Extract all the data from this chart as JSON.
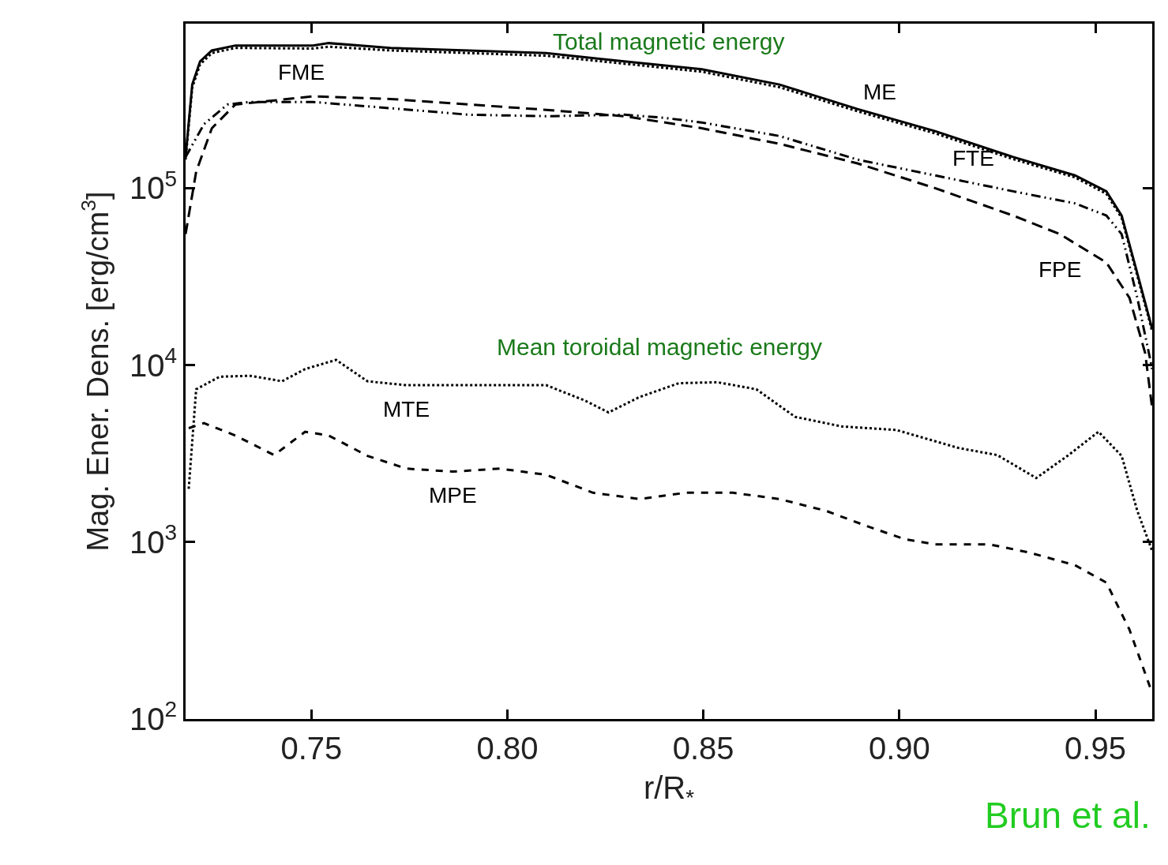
{
  "chart_data": {
    "type": "line",
    "xlabel": "r/R$_{*}$",
    "ylabel": "Mag. Ener. Dens. [erg/cm$^{3}$]",
    "log": "y",
    "legend": false,
    "marker": "none",
    "xlim": [
      0.7179,
      0.9645
    ],
    "xticks": [
      0.75,
      {
        "value": 0.8,
        "label": "0.80"
      },
      0.85,
      {
        "value": 0.9,
        "label": "0.90"
      },
      0.95
    ],
    "ylim": [
      100,
      850000
    ],
    "yticks": [
      {
        "value": 100,
        "label": "10$^{2}$"
      },
      {
        "value": 1000,
        "label": "10$^{3}$"
      },
      {
        "value": 10000,
        "label": "10$^{4}$"
      },
      {
        "value": 100000,
        "label": "10$^{5}$"
      }
    ],
    "series": [
      {
        "name": "ME",
        "color": "#000000",
        "line_style": "solid",
        "x": [
          0.7179,
          0.7196,
          0.7216,
          0.7246,
          0.7306,
          0.7504,
          0.7544,
          0.7702,
          0.7901,
          0.8099,
          0.8298,
          0.8496,
          0.8694,
          0.8893,
          0.9091,
          0.929,
          0.9448,
          0.9528,
          0.9567,
          0.9607,
          0.9645
        ],
        "values": [
          150000,
          385000,
          520000,
          600000,
          640000,
          640000,
          660000,
          620000,
          600000,
          580000,
          520000,
          470000,
          385000,
          280000,
          210000,
          150000,
          118000,
          96000,
          70000,
          33000,
          16000
        ]
      },
      {
        "name": "FME",
        "color": "#000000",
        "line_style": "dotted",
        "x": [
          0.7179,
          0.7196,
          0.7216,
          0.7246,
          0.7306,
          0.7504,
          0.7544,
          0.7702,
          0.7901,
          0.8099,
          0.8298,
          0.8496,
          0.8694,
          0.8893,
          0.9091,
          0.929,
          0.9448,
          0.9528,
          0.9567,
          0.9607,
          0.9645
        ],
        "values": [
          145000,
          370000,
          500000,
          580000,
          620000,
          615000,
          630000,
          600000,
          580000,
          560000,
          505000,
          455000,
          372000,
          272000,
          204000,
          146000,
          115000,
          93000,
          68000,
          32000,
          15500
        ]
      },
      {
        "name": "FTE",
        "color": "#000000",
        "line_style": "dashdotdot",
        "x": [
          0.7179,
          0.7226,
          0.7286,
          0.7345,
          0.7504,
          0.7702,
          0.7901,
          0.8099,
          0.8298,
          0.8397,
          0.8496,
          0.8694,
          0.8893,
          0.9091,
          0.929,
          0.9448,
          0.9528,
          0.9567,
          0.9607,
          0.9645
        ],
        "values": [
          150000,
          230000,
          297000,
          307000,
          307000,
          283000,
          260000,
          255000,
          260000,
          250000,
          235000,
          197000,
          145000,
          118000,
          96000,
          82000,
          70000,
          55000,
          24000,
          9500
        ]
      },
      {
        "name": "FPE",
        "color": "#000000",
        "line_style": "longdashed",
        "x": [
          0.7179,
          0.7206,
          0.7246,
          0.7306,
          0.7504,
          0.7702,
          0.7901,
          0.8099,
          0.8298,
          0.8496,
          0.8694,
          0.8893,
          0.9091,
          0.929,
          0.9409,
          0.9528,
          0.9587,
          0.9627,
          0.9645
        ],
        "values": [
          55000,
          124000,
          218000,
          297000,
          330000,
          319000,
          297000,
          277000,
          255000,
          218000,
          178000,
          138000,
          100000,
          70000,
          55000,
          38000,
          24000,
          11700,
          5700
        ]
      },
      {
        "name": "MTE",
        "color": "#000000",
        "line_style": "dotted",
        "x": [
          0.7187,
          0.7206,
          0.7266,
          0.7345,
          0.7425,
          0.7484,
          0.7563,
          0.7643,
          0.7742,
          0.7901,
          0.8099,
          0.8198,
          0.8258,
          0.8337,
          0.8437,
          0.8536,
          0.8635,
          0.8734,
          0.8853,
          0.8992,
          0.9151,
          0.925,
          0.9349,
          0.9429,
          0.9508,
          0.9567,
          0.9607,
          0.9645
        ],
        "values": [
          2000,
          7300,
          8600,
          8700,
          8100,
          9500,
          10700,
          8100,
          7700,
          7700,
          7700,
          6300,
          5400,
          6600,
          7900,
          8000,
          7300,
          5100,
          4500,
          4300,
          3400,
          3100,
          2300,
          3070,
          4200,
          3070,
          1500,
          890
        ]
      },
      {
        "name": "MPE",
        "color": "#000000",
        "line_style": "dashed",
        "x": [
          0.7187,
          0.7226,
          0.7306,
          0.7405,
          0.7484,
          0.7544,
          0.7643,
          0.7742,
          0.7861,
          0.798,
          0.8099,
          0.8218,
          0.8337,
          0.8456,
          0.8575,
          0.8694,
          0.8813,
          0.8913,
          0.9012,
          0.9091,
          0.923,
          0.9329,
          0.9448,
          0.9528,
          0.9587,
          0.9645
        ],
        "values": [
          4400,
          4700,
          4000,
          3100,
          4200,
          4000,
          3070,
          2600,
          2500,
          2600,
          2400,
          1900,
          1750,
          1900,
          1900,
          1750,
          1500,
          1240,
          1040,
          970,
          970,
          875,
          740,
          590,
          320,
          140
        ]
      }
    ],
    "annotations": [
      "Total magnetic energy",
      "Mean toroidal magnetic energy",
      "Brun et al."
    ]
  }
}
